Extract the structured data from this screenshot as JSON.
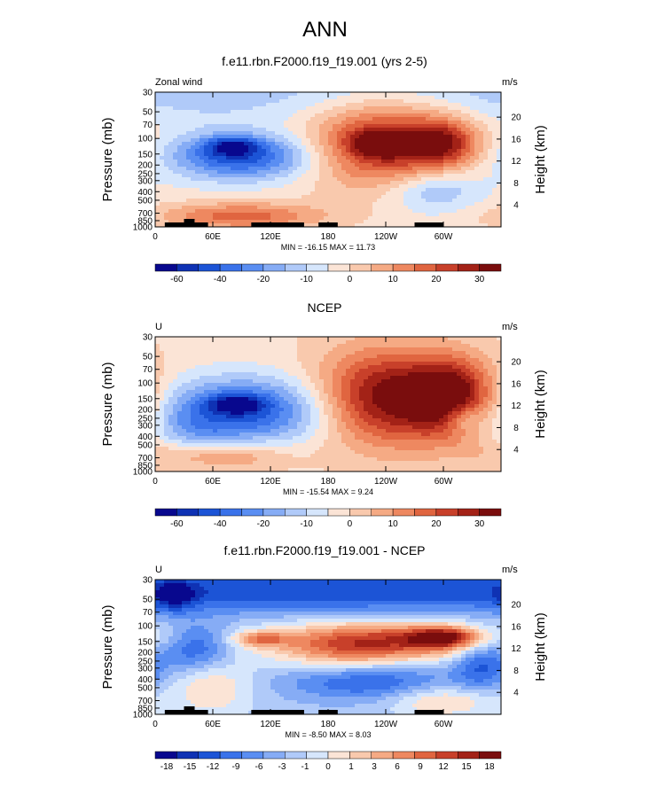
{
  "figure": {
    "title": "ANN",
    "colors": {
      "zero_color": "#fae3d4"
    }
  },
  "chart_data": [
    {
      "type": "heatmap",
      "panel_title": "f.e11.rbn.F2000.f19_f19.001 (yrs 2-5)",
      "left_string": "Zonal wind",
      "right_string": "m/s",
      "ylabel": "Pressure (mb)",
      "ylabel_right": "Height (km)",
      "x_ticks": [
        "0",
        "60E",
        "120E",
        "180",
        "120W",
        "60W"
      ],
      "y_ticks": [
        "30",
        "50",
        "70",
        "100",
        "150",
        "200",
        "250",
        "300",
        "400",
        "500",
        "700",
        "850",
        "1000"
      ],
      "right_ticks": [
        "20",
        "16",
        "12",
        "8",
        "4"
      ],
      "stats": "MIN = -16.15  MAX =  11.73",
      "min": -16.15,
      "max": 11.73,
      "colorbar_levels": [
        "-60",
        "-40",
        "-20",
        "-10",
        "0",
        "10",
        "20",
        "30"
      ],
      "colorbar_colors": [
        "#08088e",
        "#0f32b4",
        "#1c54d6",
        "#3a72ea",
        "#5a8ef2",
        "#86acf5",
        "#b0caf9",
        "#d6e6fc",
        "#fbe4d6",
        "#f9c9ad",
        "#f5aa84",
        "#ee8860",
        "#e06540",
        "#c8402a",
        "#a32217",
        "#7a0d0d"
      ],
      "field": {
        "base": 0.1,
        "blobs": [
          {
            "x": 90,
            "y": 0.48,
            "rx": 55,
            "ry": 0.12,
            "v": -1.2
          },
          {
            "x": 80,
            "y": 0.4,
            "rx": 20,
            "ry": 0.05,
            "v": -0.8
          },
          {
            "x": 240,
            "y": 0.38,
            "rx": 55,
            "ry": 0.22,
            "v": 1.3
          },
          {
            "x": 235,
            "y": 0.38,
            "rx": 20,
            "ry": 0.06,
            "v": 1.0
          },
          {
            "x": 300,
            "y": 0.38,
            "rx": 25,
            "ry": 0.12,
            "v": 0.9
          },
          {
            "x": 290,
            "y": 0.72,
            "rx": 35,
            "ry": 0.12,
            "v": -0.6
          },
          {
            "x": 90,
            "y": 0.92,
            "rx": 60,
            "ry": 0.07,
            "v": 0.8
          },
          {
            "x": 30,
            "y": 0.0,
            "rx": 360,
            "ry": 0.18,
            "v": -0.4
          }
        ]
      },
      "topography": true
    },
    {
      "type": "heatmap",
      "panel_title": "NCEP",
      "left_string": "U",
      "right_string": "m/s",
      "ylabel": "Pressure (mb)",
      "ylabel_right": "Height (km)",
      "x_ticks": [
        "0",
        "60E",
        "120E",
        "180",
        "120W",
        "60W"
      ],
      "y_ticks": [
        "30",
        "50",
        "70",
        "100",
        "150",
        "200",
        "250",
        "300",
        "400",
        "500",
        "700",
        "850",
        "1000"
      ],
      "right_ticks": [
        "20",
        "16",
        "12",
        "8",
        "4"
      ],
      "stats": "MIN = -15.54  MAX =  9.24",
      "min": -15.54,
      "max": 9.24,
      "colorbar_levels": [
        "-60",
        "-40",
        "-20",
        "-10",
        "0",
        "10",
        "20",
        "30"
      ],
      "colorbar_colors": [
        "#08088e",
        "#0f32b4",
        "#1c54d6",
        "#3a72ea",
        "#5a8ef2",
        "#86acf5",
        "#b0caf9",
        "#d6e6fc",
        "#fbe4d6",
        "#f9c9ad",
        "#f5aa84",
        "#ee8860",
        "#e06540",
        "#c8402a",
        "#a32217",
        "#7a0d0d"
      ],
      "field": {
        "base": 0.15,
        "blobs": [
          {
            "x": 100,
            "y": 0.55,
            "rx": 60,
            "ry": 0.18,
            "v": -1.2
          },
          {
            "x": 85,
            "y": 0.5,
            "rx": 20,
            "ry": 0.05,
            "v": -0.8
          },
          {
            "x": 240,
            "y": 0.45,
            "rx": 50,
            "ry": 0.25,
            "v": 1.4
          },
          {
            "x": 310,
            "y": 0.45,
            "rx": 30,
            "ry": 0.2,
            "v": 1.3
          },
          {
            "x": 320,
            "y": 0.6,
            "rx": 15,
            "ry": 0.08,
            "v": -0.6
          },
          {
            "x": 60,
            "y": 0.88,
            "rx": 50,
            "ry": 0.08,
            "v": 0.7
          },
          {
            "x": 40,
            "y": 0.72,
            "rx": 30,
            "ry": 0.2,
            "v": -0.4
          }
        ]
      },
      "topography": false
    },
    {
      "type": "heatmap",
      "panel_title": "f.e11.rbn.F2000.f19_f19.001 - NCEP",
      "left_string": "U",
      "right_string": "m/s",
      "ylabel": "Pressure (mb)",
      "ylabel_right": "Height (km)",
      "x_ticks": [
        "0",
        "60E",
        "120E",
        "180",
        "120W",
        "60W"
      ],
      "y_ticks": [
        "30",
        "50",
        "70",
        "100",
        "150",
        "200",
        "250",
        "300",
        "400",
        "500",
        "700",
        "850",
        "1000"
      ],
      "right_ticks": [
        "20",
        "16",
        "12",
        "8",
        "4"
      ],
      "stats": "MIN = -8.50  MAX =  8.03",
      "min": -8.5,
      "max": 8.03,
      "colorbar_levels": [
        "-18",
        "-15",
        "-12",
        "-9",
        "-6",
        "-3",
        "-1",
        "0",
        "1",
        "3",
        "6",
        "9",
        "12",
        "15",
        "18"
      ],
      "colorbar_colors": [
        "#08088e",
        "#0f32b4",
        "#1c54d6",
        "#3a72ea",
        "#5a8ef2",
        "#86acf5",
        "#b0caf9",
        "#d6e6fc",
        "#fbe4d6",
        "#f9c9ad",
        "#f5aa84",
        "#ee8860",
        "#e06540",
        "#c8402a",
        "#a32217",
        "#7a0d0d"
      ],
      "field": {
        "base": -0.3,
        "blobs": [
          {
            "x": 180,
            "y": 0.08,
            "rx": 360,
            "ry": 0.12,
            "v": -0.9
          },
          {
            "x": 20,
            "y": 0.12,
            "rx": 15,
            "ry": 0.08,
            "v": -0.7
          },
          {
            "x": 250,
            "y": 0.45,
            "rx": 90,
            "ry": 0.1,
            "v": 1.2
          },
          {
            "x": 300,
            "y": 0.43,
            "rx": 25,
            "ry": 0.05,
            "v": 1.2
          },
          {
            "x": 110,
            "y": 0.44,
            "rx": 20,
            "ry": 0.04,
            "v": 0.8
          },
          {
            "x": 40,
            "y": 0.5,
            "rx": 25,
            "ry": 0.12,
            "v": -0.9
          },
          {
            "x": 220,
            "y": 0.75,
            "rx": 60,
            "ry": 0.1,
            "v": -0.8
          },
          {
            "x": 340,
            "y": 0.6,
            "rx": 20,
            "ry": 0.15,
            "v": -0.8
          },
          {
            "x": 200,
            "y": 0.55,
            "rx": 50,
            "ry": 0.12,
            "v": 0.6
          },
          {
            "x": 300,
            "y": 0.9,
            "rx": 40,
            "ry": 0.08,
            "v": 0.6
          },
          {
            "x": 60,
            "y": 0.8,
            "rx": 30,
            "ry": 0.15,
            "v": 0.5
          }
        ]
      },
      "topography": true
    }
  ]
}
